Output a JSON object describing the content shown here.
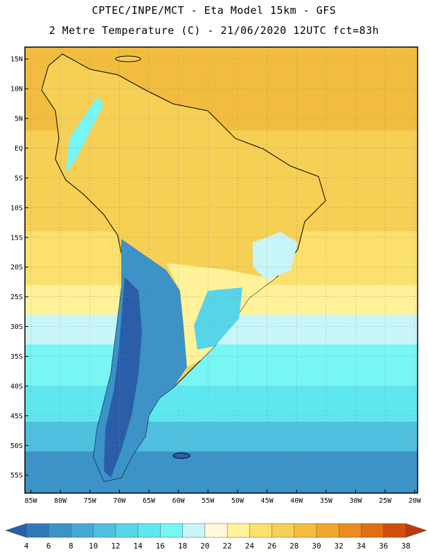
{
  "header": {
    "line1": "CPTEC/INPE/MCT -  Eta Model 15km - GFS",
    "line2": "2 Metre Temperature (C) - 21/06/2020 12UTC fct=83h"
  },
  "map": {
    "lat_labels": [
      "15N",
      "10N",
      "5N",
      "EQ",
      "5S",
      "10S",
      "15S",
      "20S",
      "25S",
      "30S",
      "35S",
      "40S",
      "45S",
      "50S",
      "55S"
    ],
    "lon_labels": [
      "85W",
      "80W",
      "75W",
      "70W",
      "65W",
      "60W",
      "55W",
      "50W",
      "45W",
      "40W",
      "35W",
      "30W",
      "25W",
      "20W"
    ],
    "ocean_bands": [
      {
        "from_lat": 17,
        "to_lat": 3,
        "temp_c": 28
      },
      {
        "from_lat": 3,
        "to_lat": -14,
        "temp_c": 26
      },
      {
        "from_lat": -14,
        "to_lat": -23,
        "temp_c": 24
      },
      {
        "from_lat": -23,
        "to_lat": -28,
        "temp_c": 22
      },
      {
        "from_lat": -28,
        "to_lat": -33,
        "temp_c": 18
      },
      {
        "from_lat": -33,
        "to_lat": -40,
        "temp_c": 16
      },
      {
        "from_lat": -40,
        "to_lat": -46,
        "temp_c": 14
      },
      {
        "from_lat": -46,
        "to_lat": -51,
        "temp_c": 10
      },
      {
        "from_lat": -51,
        "to_lat": -58,
        "temp_c": 6
      }
    ]
  },
  "colorbar": {
    "labels": [
      "4",
      "6",
      "8",
      "10",
      "12",
      "14",
      "16",
      "18",
      "20",
      "22",
      "24",
      "26",
      "28",
      "30",
      "32",
      "34",
      "36",
      "38"
    ],
    "colors": [
      "#2b5ea8",
      "#3079b8",
      "#3b93c7",
      "#46a9d4",
      "#4fc0df",
      "#57d5e8",
      "#5fe7ef",
      "#78f5f5",
      "#c8f5f7",
      "#fff8dc",
      "#fff29a",
      "#fbe06e",
      "#f6cf55",
      "#f2bd3e",
      "#f0a82c",
      "#ea8c1f",
      "#e06e14",
      "#cf4f0c",
      "#bf370a"
    ]
  }
}
